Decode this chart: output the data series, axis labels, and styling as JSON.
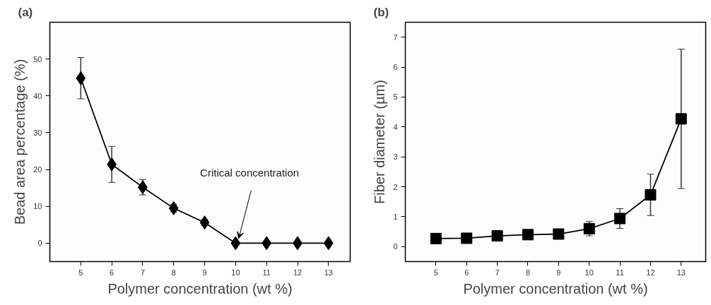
{
  "chart_data": [
    {
      "type": "line",
      "title": "(a)",
      "xlabel": "Polymer concentration (wt %)",
      "ylabel": "Bead area percentage (%)",
      "x": [
        5,
        6,
        7,
        8,
        9,
        10,
        11,
        12,
        13
      ],
      "series": [
        {
          "color": "#000000",
          "values": [
            44.8,
            21.4,
            15.2,
            9.5,
            5.6,
            0,
            0,
            0,
            0
          ],
          "errors": [
            5.6,
            4.9,
            2.1,
            1.0,
            0.8,
            null,
            null,
            null,
            null
          ]
        }
      ],
      "marker": "diamond",
      "line_style": "solid",
      "grid": false,
      "xlim": [
        4,
        13.7
      ],
      "xticks": [
        5,
        6,
        7,
        8,
        9,
        10,
        11,
        12,
        13
      ],
      "ylim": [
        -5,
        60
      ],
      "yticks": [
        0,
        10,
        20,
        30,
        40,
        50
      ],
      "annotations": [
        {
          "text": "Critical concentration",
          "x": 10,
          "y": 0
        }
      ]
    },
    {
      "type": "line",
      "title": "(b)",
      "xlabel": "Polymer concentration (wt %)",
      "ylabel": "Fiber diameter (µm)",
      "x": [
        5,
        6,
        7,
        8,
        9,
        10,
        11,
        12,
        13
      ],
      "series": [
        {
          "color": "#000000",
          "values": [
            0.27,
            0.28,
            0.36,
            0.4,
            0.42,
            0.6,
            0.94,
            1.73,
            4.27
          ],
          "errors": [
            null,
            null,
            null,
            0.1,
            0.1,
            0.24,
            0.33,
            0.69,
            2.33
          ]
        }
      ],
      "marker": "square",
      "line_style": "solid",
      "grid": false,
      "xlim": [
        4,
        13.8
      ],
      "xticks": [
        5,
        6,
        7,
        8,
        9,
        10,
        11,
        12,
        13
      ],
      "ylim": [
        -0.5,
        7.5
      ],
      "yticks": [
        0,
        1,
        2,
        3,
        4,
        5,
        6,
        7
      ]
    }
  ]
}
